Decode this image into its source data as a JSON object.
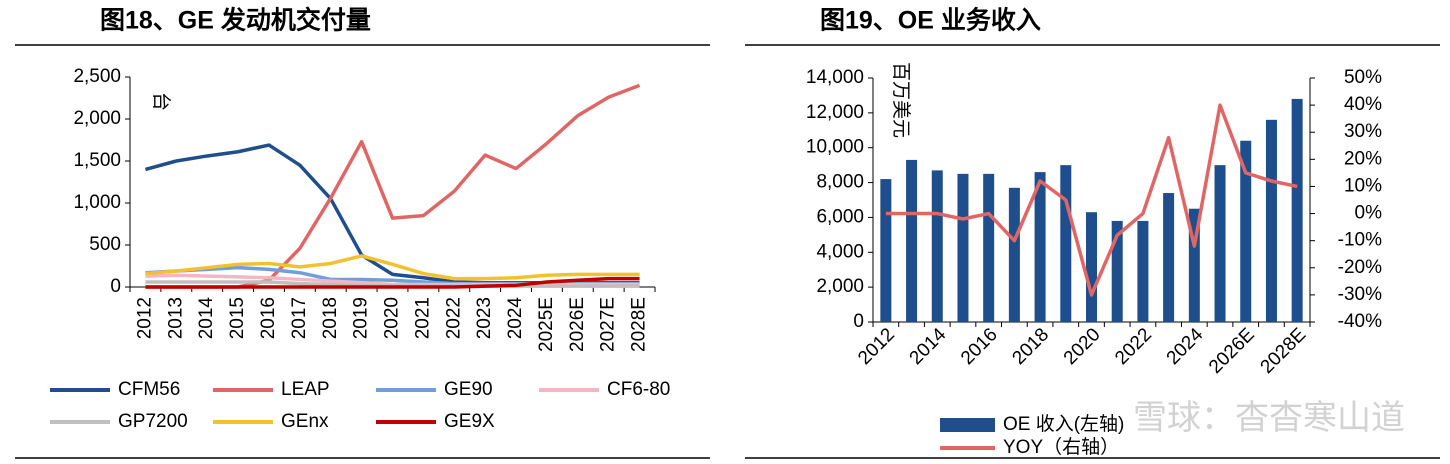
{
  "chart_data": [
    {
      "type": "line",
      "title": "图18、GE 发动机交付量",
      "unit": "台",
      "categories": [
        "2012",
        "2013",
        "2014",
        "2015",
        "2016",
        "2017",
        "2018",
        "2019",
        "2020",
        "2021",
        "2022",
        "2023",
        "2024",
        "2025E",
        "2026E",
        "2027E",
        "2028E"
      ],
      "ylim": [
        0,
        2500
      ],
      "yticks": [
        0,
        500,
        {
          "value": 1000,
          "label": "1,000"
        },
        {
          "value": 1500,
          "label": "1,500"
        },
        {
          "value": 2000,
          "label": "2,000"
        },
        {
          "value": 2500,
          "label": "2,500"
        }
      ],
      "series": [
        {
          "name": "CFM56",
          "color": "#1f4e8c",
          "values": [
            1400,
            1500,
            1560,
            1610,
            1690,
            1450,
            1050,
            380,
            150,
            110,
            60,
            50,
            50,
            50,
            50,
            50,
            50
          ]
        },
        {
          "name": "LEAP",
          "color": "#e06666",
          "values": [
            0,
            0,
            0,
            0,
            80,
            460,
            1060,
            1730,
            820,
            850,
            1140,
            1570,
            1410,
            1710,
            2040,
            2260,
            2400
          ]
        },
        {
          "name": "GE90",
          "color": "#6f9fd8",
          "values": [
            170,
            190,
            210,
            230,
            210,
            170,
            90,
            90,
            80,
            60,
            40,
            40,
            40,
            40,
            40,
            40,
            40
          ]
        },
        {
          "name": "CF6-80",
          "color": "#f4b6c2",
          "values": [
            130,
            140,
            130,
            120,
            110,
            90,
            70,
            50,
            30,
            30,
            30,
            30,
            30,
            30,
            30,
            30,
            30
          ]
        },
        {
          "name": "GP7200",
          "color": "#bfbfbf",
          "values": [
            60,
            60,
            60,
            60,
            60,
            40,
            30,
            20,
            10,
            10,
            10,
            10,
            10,
            10,
            10,
            10,
            10
          ]
        },
        {
          "name": "GEnx",
          "color": "#f2c12e",
          "values": [
            160,
            190,
            230,
            270,
            280,
            240,
            280,
            370,
            270,
            160,
            100,
            100,
            110,
            140,
            150,
            150,
            150
          ]
        },
        {
          "name": "GE9X",
          "color": "#c00000",
          "values": [
            0,
            0,
            0,
            0,
            0,
            0,
            0,
            0,
            0,
            0,
            0,
            10,
            20,
            60,
            80,
            100,
            100
          ]
        }
      ]
    },
    {
      "type": "bar",
      "title": "图19、OE 业务收入",
      "unit": "百万美元",
      "categories": [
        "2012",
        null,
        "2014",
        null,
        "2016",
        null,
        "2018",
        null,
        "2020",
        null,
        "2022",
        null,
        "2024",
        null,
        "2026E",
        null,
        "2028E"
      ],
      "ylim": [
        0,
        14000
      ],
      "yticks": [
        0,
        {
          "value": 2000,
          "label": "2,000"
        },
        {
          "value": 4000,
          "label": "4,000"
        },
        {
          "value": 6000,
          "label": "6,000"
        },
        {
          "value": 8000,
          "label": "8,000"
        },
        {
          "value": 10000,
          "label": "10,000"
        },
        {
          "value": 12000,
          "label": "12,000"
        },
        {
          "value": 14000,
          "label": "14,000"
        }
      ],
      "y2lim": [
        -40,
        50
      ],
      "y2ticks": [
        {
          "value": -40,
          "label": "-40%"
        },
        {
          "value": -30,
          "label": "-30%"
        },
        {
          "value": -20,
          "label": "-20%"
        },
        {
          "value": -10,
          "label": "-10%"
        },
        {
          "value": 0,
          "label": "0%"
        },
        {
          "value": 10,
          "label": "10%"
        },
        {
          "value": 20,
          "label": "20%"
        },
        {
          "value": 30,
          "label": "30%"
        },
        {
          "value": 40,
          "label": "40%"
        },
        {
          "value": 50,
          "label": "50%"
        }
      ],
      "series": [
        {
          "name": "OE 收入(左轴)",
          "color": "#1f4e8c",
          "values": [
            8200,
            9300,
            8700,
            8500,
            8500,
            7700,
            8600,
            9000,
            6300,
            5800,
            5800,
            7400,
            6500,
            9000,
            10400,
            11600,
            12800
          ]
        },
        {
          "name": "YOY（右轴）",
          "color": "#e06666",
          "type": "line",
          "axis": "y2",
          "values": [
            0,
            0,
            0,
            -2,
            0,
            -10,
            12,
            5,
            -30,
            -8,
            0,
            28,
            -12,
            40,
            15,
            12,
            10
          ]
        }
      ],
      "watermark": "雪球：杳杳寒山道"
    }
  ]
}
